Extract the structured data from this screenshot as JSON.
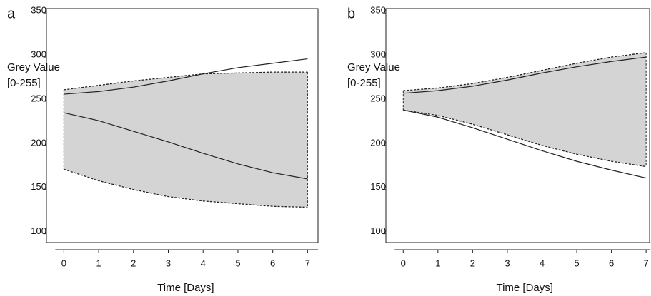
{
  "chart_data": [
    {
      "type": "line",
      "panel_label": "a",
      "y_label_lines": [
        "Grey Value",
        "[0-255]"
      ],
      "x_label": "Time [Days]",
      "x": [
        0,
        1,
        2,
        3,
        4,
        5,
        6,
        7
      ],
      "xlim": [
        -0.5,
        7.3
      ],
      "xticks": [
        0,
        1,
        2,
        3,
        4,
        5,
        6,
        7
      ],
      "ylim": [
        90,
        355
      ],
      "yticks": [
        100,
        150,
        200,
        250,
        300,
        350
      ],
      "band": [
        2,
        3
      ],
      "band_color": "#d4d4d4",
      "series": [
        {
          "color": "#222222",
          "dash": false,
          "values": [
            258,
            261,
            266,
            273,
            281,
            288,
            293,
            298
          ]
        },
        {
          "color": "#222222",
          "dash": false,
          "values": [
            237,
            228,
            216,
            204,
            191,
            179,
            169,
            162
          ]
        },
        {
          "color": "#222222",
          "dash": true,
          "values": [
            263,
            268,
            273,
            277,
            281,
            282,
            283,
            283
          ]
        },
        {
          "color": "#222222",
          "dash": true,
          "values": [
            173,
            160,
            150,
            142,
            137,
            134,
            131,
            130
          ]
        }
      ]
    },
    {
      "type": "line",
      "panel_label": "b",
      "y_label_lines": [
        "Grey Value",
        "[0-255]"
      ],
      "x_label": "Time [Days]",
      "x": [
        0,
        1,
        2,
        3,
        4,
        5,
        6,
        7
      ],
      "xlim": [
        -0.5,
        7.1
      ],
      "xticks": [
        0,
        1,
        2,
        3,
        4,
        5,
        6,
        7
      ],
      "ylim": [
        90,
        355
      ],
      "yticks": [
        100,
        150,
        200,
        250,
        300,
        350
      ],
      "band": [
        2,
        3
      ],
      "band_color": "#d4d4d4",
      "series": [
        {
          "color": "#222222",
          "dash": false,
          "values": [
            259,
            262,
            267,
            274,
            282,
            289,
            295,
            300
          ]
        },
        {
          "color": "#222222",
          "dash": false,
          "values": [
            240,
            232,
            220,
            207,
            194,
            182,
            172,
            163
          ]
        },
        {
          "color": "#222222",
          "dash": true,
          "values": [
            262,
            265,
            270,
            277,
            285,
            293,
            300,
            305
          ]
        },
        {
          "color": "#222222",
          "dash": true,
          "values": [
            240,
            234,
            224,
            212,
            200,
            190,
            182,
            176
          ]
        }
      ]
    }
  ]
}
